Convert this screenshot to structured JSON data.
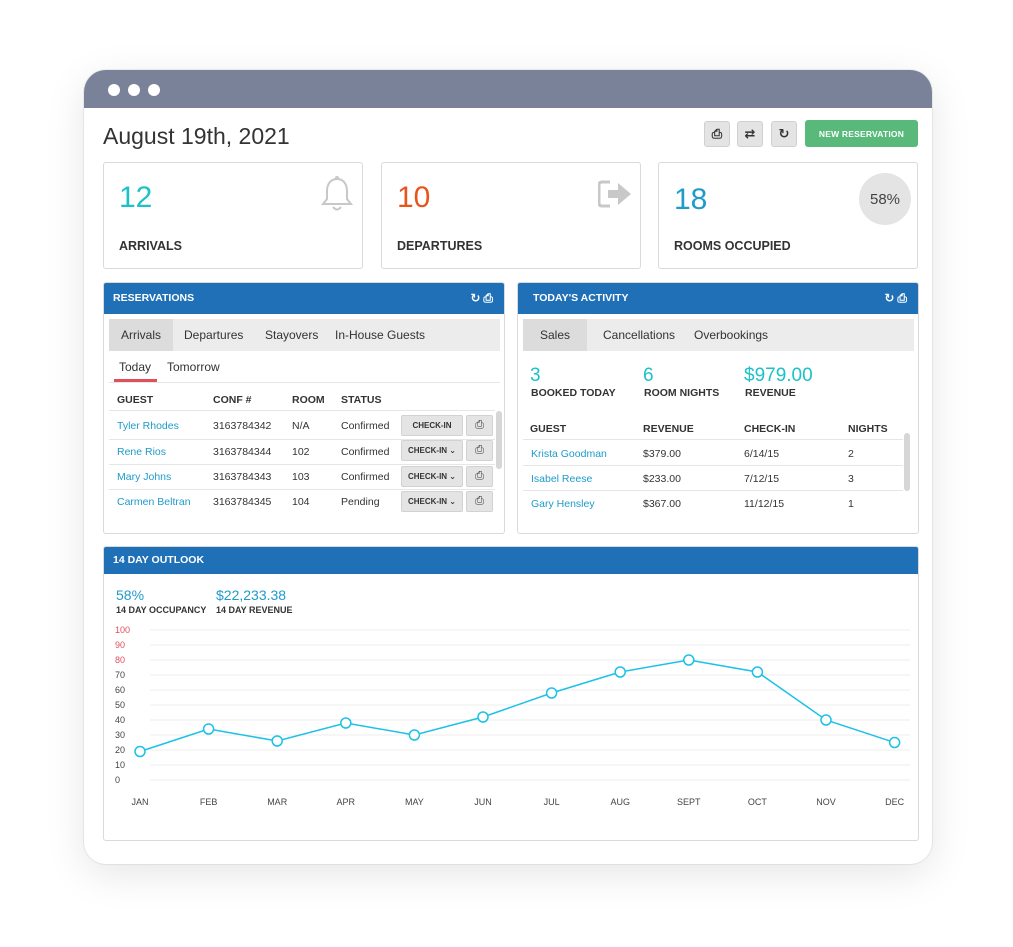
{
  "header": {
    "date": "August 19th, 2021",
    "toolbar": [
      {
        "icon": "print-icon",
        "glyph": "⎙"
      },
      {
        "icon": "swap-icon",
        "glyph": "⇄"
      },
      {
        "icon": "refresh-icon",
        "glyph": "↻"
      }
    ],
    "new_reservation_label": "NEW RESERVATION"
  },
  "stats": {
    "arrivals": {
      "value": "12",
      "label": "ARRIVALS",
      "color": "#1cc1c9",
      "icon": "bell-icon"
    },
    "departures": {
      "value": "10",
      "label": "DEPARTURES",
      "color": "#e8541e",
      "icon": "sign-out-icon"
    },
    "rooms": {
      "value": "18",
      "label": "ROOMS OCCUPIED",
      "color": "#1e9bc9",
      "percent": "58%"
    }
  },
  "reservations": {
    "title": "RESERVATIONS",
    "tabs": [
      "Arrivals",
      "Departures",
      "Stayovers",
      "In-House Guests"
    ],
    "subtabs": [
      "Today",
      "Tomorrow"
    ],
    "columns": [
      "GUEST",
      "CONF #",
      "ROOM",
      "STATUS"
    ],
    "rows": [
      {
        "guest": "Tyler Rhodes",
        "conf": "3163784342",
        "room": "N/A",
        "status": "Confirmed",
        "action": "CHECK-IN"
      },
      {
        "guest": "Rene Rios",
        "conf": "3163784344",
        "room": "102",
        "status": "Confirmed",
        "action": "CHECK-IN ⌄"
      },
      {
        "guest": "Mary Johns",
        "conf": "3163784343",
        "room": "103",
        "status": "Confirmed",
        "action": "CHECK-IN ⌄"
      },
      {
        "guest": "Carmen Beltran",
        "conf": "3163784345",
        "room": "104",
        "status": "Pending",
        "action": "CHECK-IN ⌄"
      }
    ]
  },
  "activity": {
    "title": "TODAY'S ACTIVITY",
    "tabs": [
      "Sales",
      "Cancellations",
      "Overbookings"
    ],
    "summary": [
      {
        "value": "3",
        "label": "BOOKED TODAY"
      },
      {
        "value": "6",
        "label": "ROOM NIGHTS"
      },
      {
        "value": "$979.00",
        "label": "REVENUE"
      }
    ],
    "columns": [
      "GUEST",
      "REVENUE",
      "CHECK-IN",
      "NIGHTS"
    ],
    "rows": [
      {
        "guest": "Krista Goodman",
        "revenue": "$379.00",
        "checkin": "6/14/15",
        "nights": "2"
      },
      {
        "guest": "Isabel Reese",
        "revenue": "$233.00",
        "checkin": "7/12/15",
        "nights": "3"
      },
      {
        "guest": "Gary Hensley",
        "revenue": "$367.00",
        "checkin": "11/12/15",
        "nights": "1"
      }
    ]
  },
  "outlook": {
    "title": "14 DAY OUTLOOK",
    "occupancy_value": "58%",
    "occupancy_label": "14 DAY OCCUPANCY",
    "revenue_value": "$22,233.38",
    "revenue_label": "14 DAY REVENUE"
  },
  "chart_data": {
    "type": "line",
    "categories": [
      "JAN",
      "FEB",
      "MAR",
      "APR",
      "MAY",
      "JUN",
      "JUL",
      "AUG",
      "SEPT",
      "OCT",
      "NOV",
      "DEC"
    ],
    "values": [
      19,
      34,
      26,
      38,
      30,
      42,
      58,
      72,
      80,
      72,
      40,
      25
    ],
    "ylim": [
      0,
      100
    ],
    "yticks": [
      0,
      10,
      20,
      30,
      40,
      50,
      60,
      70,
      80,
      90,
      100
    ],
    "highlight_ticks": [
      80,
      90,
      100
    ],
    "line_color": "#1cc1e6",
    "highlight_color": "#e0505a",
    "grid": true,
    "title": "",
    "xlabel": "",
    "ylabel": ""
  }
}
